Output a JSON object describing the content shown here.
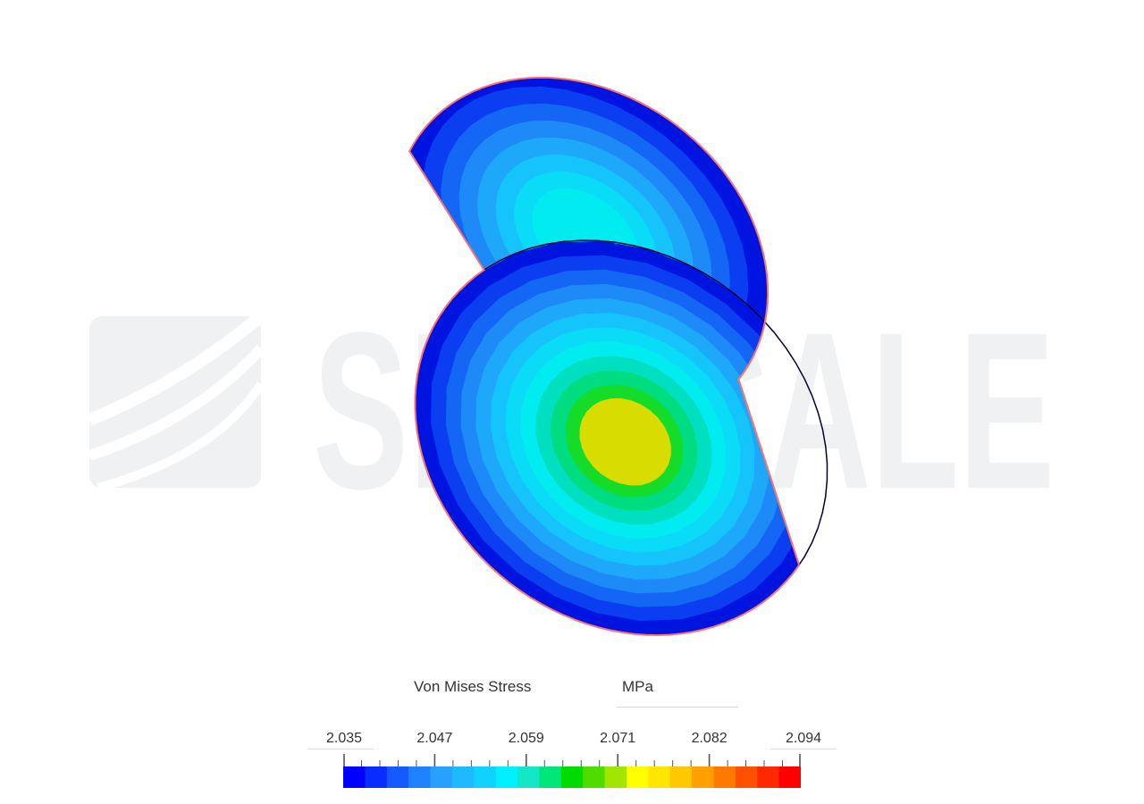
{
  "watermark": {
    "text": "SIMSCALE",
    "color": "#f0f1f3"
  },
  "result": {
    "field_label": "Von Mises Stress",
    "unit": "MPa",
    "colormap_colors": [
      "#0000ff",
      "#0a2dff",
      "#145aff",
      "#1e82ff",
      "#28a0ff",
      "#1eb9ff",
      "#0fd2ff",
      "#00f0ff",
      "#14e6c8",
      "#00e678",
      "#00dc00",
      "#50dc00",
      "#a0e600",
      "#ffff00",
      "#ffe600",
      "#ffc800",
      "#ffa000",
      "#ff7800",
      "#ff5000",
      "#ff2800",
      "#ff0000"
    ],
    "legend": {
      "tick_labels": [
        "2.035",
        "2.047",
        "2.059",
        "2.071",
        "2.082",
        "2.094"
      ]
    }
  },
  "model": {
    "edge_color": "#ff7070",
    "band_colors": [
      "#0014e0",
      "#0a3ef0",
      "#1466f4",
      "#1e8af8",
      "#1ea8fa",
      "#14c4fa",
      "#0adcf8",
      "#00ecf0",
      "#00e0c0",
      "#00dc80",
      "#14dc28",
      "#5ad800",
      "#a8dc00",
      "#d8dc00"
    ]
  }
}
